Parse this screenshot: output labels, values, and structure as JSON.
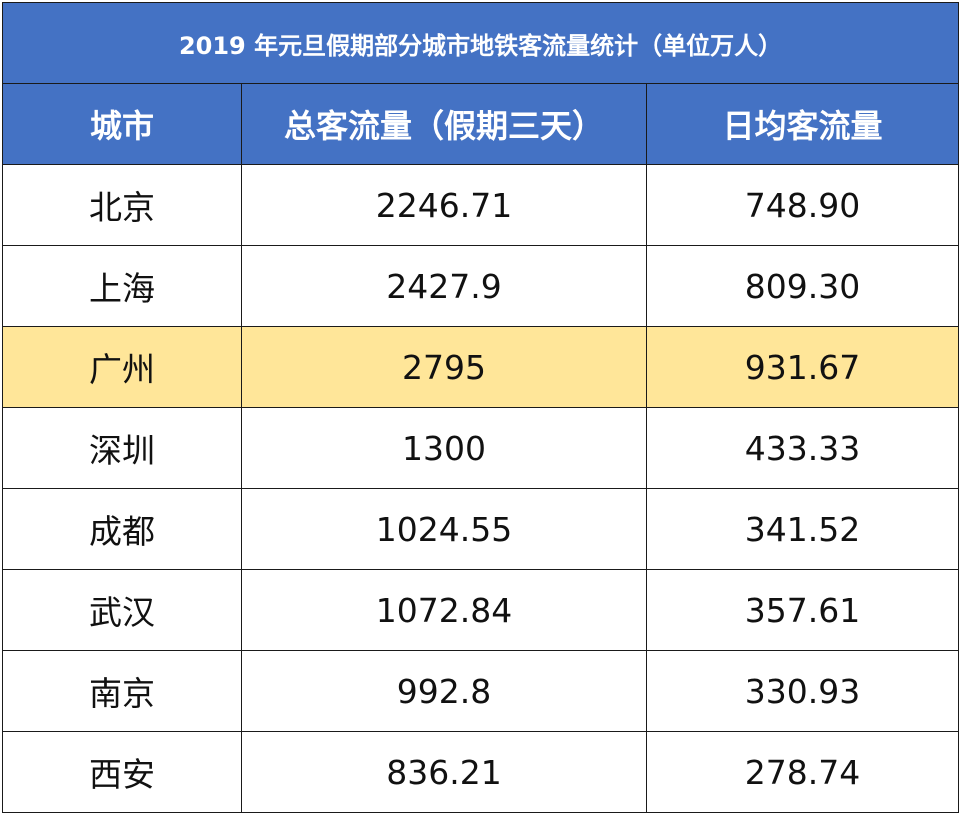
{
  "chart_data": {
    "type": "table",
    "title": "2019 年元旦假期部分城市地铁客流量统计（单位万人）",
    "columns": [
      "城市",
      "总客流量（假期三天）",
      "日均客流量"
    ],
    "rows": [
      {
        "city": "北京",
        "total": "2246.71",
        "daily": "748.90",
        "highlight": false
      },
      {
        "city": "上海",
        "total": "2427.9",
        "daily": "809.30",
        "highlight": false
      },
      {
        "city": "广州",
        "total": "2795",
        "daily": "931.67",
        "highlight": true
      },
      {
        "city": "深圳",
        "total": "1300",
        "daily": "433.33",
        "highlight": false
      },
      {
        "city": "成都",
        "total": "1024.55",
        "daily": "341.52",
        "highlight": false
      },
      {
        "city": "武汉",
        "total": "1072.84",
        "daily": "357.61",
        "highlight": false
      },
      {
        "city": "南京",
        "total": "992.8",
        "daily": "330.93",
        "highlight": false
      },
      {
        "city": "西安",
        "total": "836.21",
        "daily": "278.74",
        "highlight": false
      }
    ],
    "colors": {
      "header": "#4472C4",
      "highlight": "#FFE699"
    }
  }
}
